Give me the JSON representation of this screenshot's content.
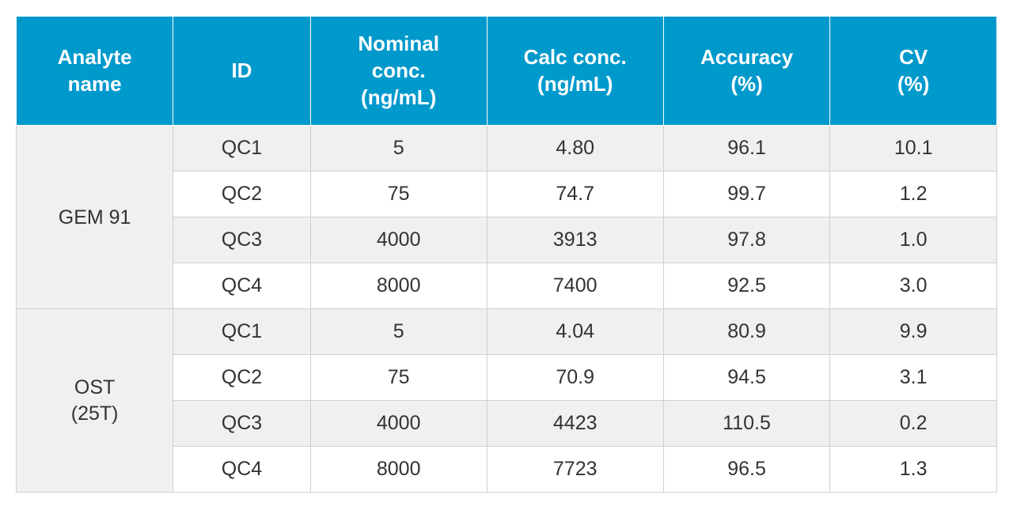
{
  "table": {
    "type": "table",
    "header_bg_color": "#0099cc",
    "header_text_color": "#ffffff",
    "cell_border_color": "#d0d0d0",
    "header_border_color": "#ffffff",
    "odd_row_bg": "#f0f0f0",
    "even_row_bg": "#ffffff",
    "text_color": "#333333",
    "header_fontsize": 26,
    "cell_fontsize": 25,
    "columns": [
      {
        "label_line1": "Analyte",
        "label_line2": "name",
        "width_pct": 16
      },
      {
        "label": "ID",
        "width_pct": 14
      },
      {
        "label_line1": "Nominal",
        "label_line2": "conc.",
        "label_line3": "(ng/mL)",
        "width_pct": 18
      },
      {
        "label_line1": "Calc conc.",
        "label_line2": "(ng/mL)",
        "width_pct": 18
      },
      {
        "label_line1": "Accuracy",
        "label_line2": "(%)",
        "width_pct": 17
      },
      {
        "label_line1": "CV",
        "label_line2": "(%)",
        "width_pct": 17
      }
    ],
    "groups": [
      {
        "analyte_line1": "GEM 91",
        "analyte_line2": "",
        "rows": [
          {
            "id": "QC1",
            "nominal": "5",
            "calc": "4.80",
            "accuracy": "96.1",
            "cv": "10.1"
          },
          {
            "id": "QC2",
            "nominal": "75",
            "calc": "74.7",
            "accuracy": "99.7",
            "cv": "1.2"
          },
          {
            "id": "QC3",
            "nominal": "4000",
            "calc": "3913",
            "accuracy": "97.8",
            "cv": "1.0"
          },
          {
            "id": "QC4",
            "nominal": "8000",
            "calc": "7400",
            "accuracy": "92.5",
            "cv": "3.0"
          }
        ]
      },
      {
        "analyte_line1": "OST",
        "analyte_line2": "(25T)",
        "rows": [
          {
            "id": "QC1",
            "nominal": "5",
            "calc": "4.04",
            "accuracy": "80.9",
            "cv": "9.9"
          },
          {
            "id": "QC2",
            "nominal": "75",
            "calc": "70.9",
            "accuracy": "94.5",
            "cv": "3.1"
          },
          {
            "id": "QC3",
            "nominal": "4000",
            "calc": "4423",
            "accuracy": "110.5",
            "cv": "0.2"
          },
          {
            "id": "QC4",
            "nominal": "8000",
            "calc": "7723",
            "accuracy": "96.5",
            "cv": "1.3"
          }
        ]
      }
    ]
  }
}
